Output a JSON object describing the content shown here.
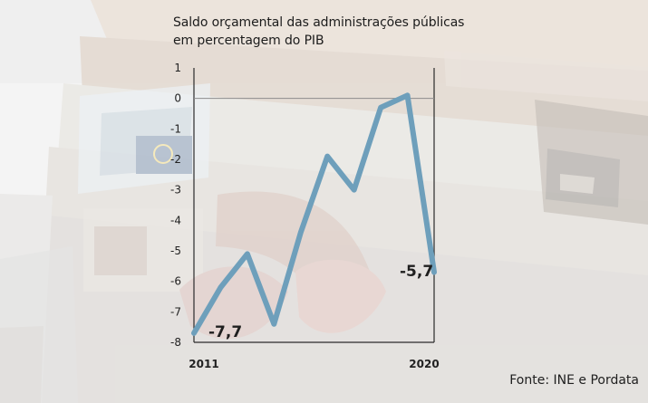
{
  "chart_data": {
    "type": "line",
    "title": "Saldo orçamental das administrações públicas em percentagem do PIB",
    "title_lines": [
      "Saldo orçamental das administrações públicas",
      "em percentagem do PIB"
    ],
    "xlabel": "",
    "ylabel": "",
    "x": [
      2011,
      2012,
      2013,
      2014,
      2015,
      2016,
      2017,
      2018,
      2019,
      2020
    ],
    "series": [
      {
        "values": [
          -7.7,
          -6.2,
          -5.1,
          -7.4,
          -4.4,
          -1.9,
          -3.0,
          -0.3,
          0.1,
          -5.7
        ]
      }
    ],
    "ylim": [
      -8,
      1
    ],
    "y_ticks": [
      1,
      0,
      -1,
      -2,
      -3,
      -4,
      -5,
      -6,
      -7,
      -8
    ],
    "x_tick_labels": [
      "2011",
      "2020"
    ],
    "data_labels": [
      {
        "x": 2011,
        "text": "-7,7"
      },
      {
        "x": 2020,
        "text": "-5,7"
      }
    ],
    "grid": "zero-line",
    "source": "Fonte: INE e Pordata",
    "colors": {
      "line": "#6e9fbb",
      "axis": "#2b2b2b",
      "zero_line": "#8c8c8c"
    }
  }
}
